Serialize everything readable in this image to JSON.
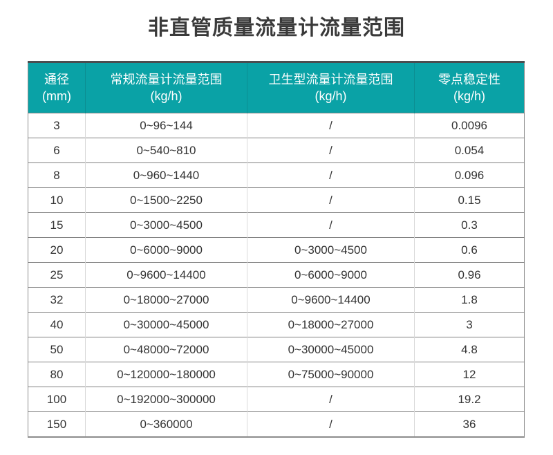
{
  "page": {
    "title": "非直管质量流量计流量范围"
  },
  "colors": {
    "header_bg": "#0aa2a6",
    "header_text": "#ffffff",
    "header_divider": "#0b8e92",
    "table_top_border": "#4a4d50",
    "table_outer_border": "#8c8c8c",
    "row_divider": "#7f7f7f",
    "column_divider": "#d9d9d9",
    "body_text": "#333333",
    "title_text": "#3a3a3a"
  },
  "chart_data": {
    "type": "table",
    "title": "非直管质量流量计流量范围",
    "columns": [
      {
        "key": "diameter",
        "label": "通径",
        "unit": "(mm)"
      },
      {
        "key": "regular_range",
        "label": "常规流量计流量范围",
        "unit": "(kg/h)"
      },
      {
        "key": "sanitary_range",
        "label": "卫生型流量计流量范围",
        "unit": "(kg/h)"
      },
      {
        "key": "zero_stability",
        "label": "零点稳定性",
        "unit": "(kg/h)"
      }
    ],
    "rows": [
      [
        "3",
        "0~96~144",
        "/",
        "0.0096"
      ],
      [
        "6",
        "0~540~810",
        "/",
        "0.054"
      ],
      [
        "8",
        "0~960~1440",
        "/",
        "0.096"
      ],
      [
        "10",
        "0~1500~2250",
        "/",
        "0.15"
      ],
      [
        "15",
        "0~3000~4500",
        "/",
        "0.3"
      ],
      [
        "20",
        "0~6000~9000",
        "0~3000~4500",
        "0.6"
      ],
      [
        "25",
        "0~9600~14400",
        "0~6000~9000",
        "0.96"
      ],
      [
        "32",
        "0~18000~27000",
        "0~9600~14400",
        "1.8"
      ],
      [
        "40",
        "0~30000~45000",
        "0~18000~27000",
        "3"
      ],
      [
        "50",
        "0~48000~72000",
        "0~30000~45000",
        "4.8"
      ],
      [
        "80",
        "0~120000~180000",
        "0~75000~90000",
        "12"
      ],
      [
        "100",
        "0~192000~300000",
        "/",
        "19.2"
      ],
      [
        "150",
        "0~360000",
        "/",
        "36"
      ]
    ]
  }
}
